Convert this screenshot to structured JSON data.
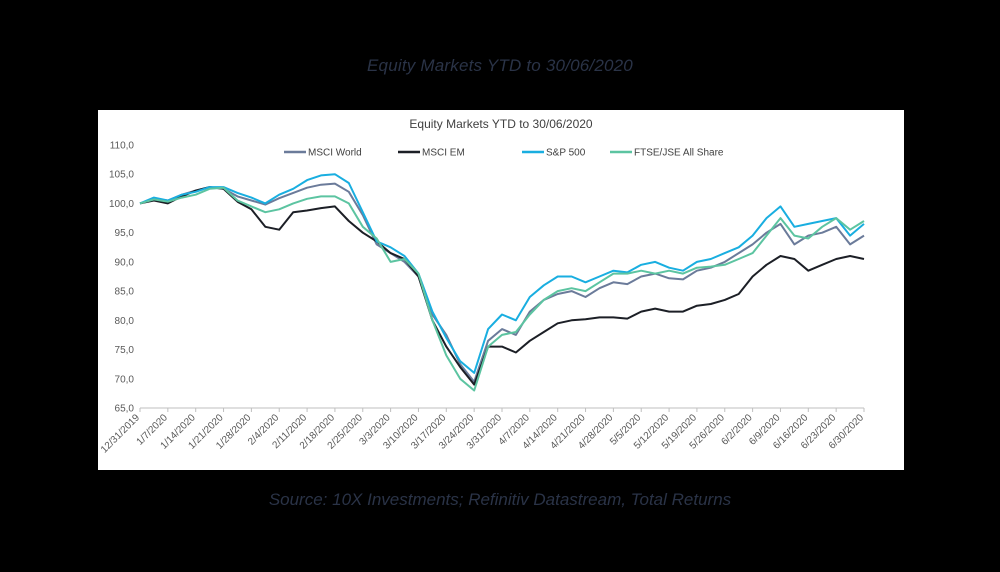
{
  "page": {
    "title": "Equity Markets YTD to 30/06/2020",
    "source": "Source: 10X Investments; Refinitiv Datastream, Total Returns"
  },
  "chart_data": {
    "type": "line",
    "title": "Equity Markets YTD to 30/06/2020",
    "xlabel": "",
    "ylabel": "",
    "ylim": [
      65,
      110
    ],
    "yticks": [
      "65,0",
      "70,0",
      "75,0",
      "80,0",
      "85,0",
      "90,0",
      "95,0",
      "100,0",
      "105,0",
      "110,0"
    ],
    "grid": false,
    "legend": "top",
    "x_tick_labels": [
      "12/31/2019",
      "1/7/2020",
      "1/14/2020",
      "1/21/2020",
      "1/28/2020",
      "2/4/2020",
      "2/11/2020",
      "2/18/2020",
      "2/25/2020",
      "3/3/2020",
      "3/10/2020",
      "3/17/2020",
      "3/24/2020",
      "3/31/2020",
      "4/7/2020",
      "4/14/2020",
      "4/21/2020",
      "4/28/2020",
      "5/5/2020",
      "5/12/2020",
      "5/19/2020",
      "5/26/2020",
      "6/2/2020",
      "6/9/2020",
      "6/16/2020",
      "6/23/2020",
      "6/30/2020"
    ],
    "x": [
      "12/31/2019",
      "1/3/2020",
      "1/7/2020",
      "1/10/2020",
      "1/14/2020",
      "1/17/2020",
      "1/21/2020",
      "1/24/2020",
      "1/28/2020",
      "1/31/2020",
      "2/4/2020",
      "2/7/2020",
      "2/11/2020",
      "2/14/2020",
      "2/18/2020",
      "2/21/2020",
      "2/25/2020",
      "2/28/2020",
      "3/3/2020",
      "3/6/2020",
      "3/10/2020",
      "3/13/2020",
      "3/17/2020",
      "3/20/2020",
      "3/24/2020",
      "3/27/2020",
      "3/31/2020",
      "4/3/2020",
      "4/7/2020",
      "4/10/2020",
      "4/14/2020",
      "4/17/2020",
      "4/21/2020",
      "4/24/2020",
      "4/28/2020",
      "5/1/2020",
      "5/5/2020",
      "5/8/2020",
      "5/12/2020",
      "5/15/2020",
      "5/19/2020",
      "5/22/2020",
      "5/26/2020",
      "5/29/2020",
      "6/2/2020",
      "6/5/2020",
      "6/9/2020",
      "6/12/2020",
      "6/16/2020",
      "6/19/2020",
      "6/23/2020",
      "6/26/2020",
      "6/30/2020"
    ],
    "series": [
      {
        "name": "MSCI World",
        "color": "#6b7b9a",
        "values": [
          100,
          100.8,
          100.5,
          101.5,
          102.2,
          102.8,
          102.5,
          101.2,
          100.5,
          99.8,
          100.9,
          101.8,
          102.7,
          103.2,
          103.4,
          102.0,
          98.0,
          93.0,
          91.5,
          90.0,
          87.5,
          81.0,
          77.5,
          72.5,
          69.5,
          76.5,
          78.5,
          77.5,
          81.5,
          83.5,
          84.5,
          85.0,
          84.0,
          85.5,
          86.5,
          86.2,
          87.5,
          88.0,
          87.2,
          87.0,
          88.5,
          89.0,
          90.0,
          91.5,
          93.0,
          95.0,
          96.5,
          93.0,
          94.5,
          95.0,
          96.0,
          93.0,
          94.5
        ]
      },
      {
        "name": "MSCI EM",
        "color": "#1c1f26",
        "values": [
          100,
          100.5,
          100.0,
          101.2,
          102.2,
          102.8,
          102.5,
          100.3,
          99.0,
          96.0,
          95.5,
          98.5,
          98.8,
          99.2,
          99.5,
          97.0,
          95.0,
          93.5,
          91.5,
          90.5,
          87.5,
          80.0,
          75.5,
          72.0,
          69.0,
          75.5,
          75.5,
          74.5,
          76.5,
          78.0,
          79.5,
          80.0,
          80.2,
          80.5,
          80.5,
          80.3,
          81.5,
          82.0,
          81.5,
          81.5,
          82.5,
          82.8,
          83.5,
          84.5,
          87.5,
          89.5,
          91.0,
          90.5,
          88.5,
          89.5,
          90.5,
          91.0,
          90.5
        ]
      },
      {
        "name": "S&P 500",
        "color": "#19aee0",
        "values": [
          100,
          101.0,
          100.5,
          101.5,
          102.0,
          102.8,
          102.8,
          101.8,
          101.0,
          100.0,
          101.5,
          102.5,
          104.0,
          104.8,
          105.0,
          103.5,
          98.5,
          93.5,
          92.5,
          91.0,
          88.0,
          81.5,
          77.0,
          73.0,
          71.0,
          78.5,
          81.0,
          80.0,
          84.0,
          86.0,
          87.5,
          87.5,
          86.5,
          87.5,
          88.5,
          88.2,
          89.5,
          90.0,
          89.0,
          88.5,
          90.0,
          90.5,
          91.5,
          92.5,
          94.5,
          97.5,
          99.5,
          96.0,
          96.5,
          97.0,
          97.5,
          94.5,
          96.5
        ]
      },
      {
        "name": "FTSE/JSE All Share",
        "color": "#5cc4a1",
        "values": [
          100,
          100.7,
          100.3,
          101.0,
          101.5,
          102.5,
          102.7,
          100.5,
          99.5,
          98.5,
          99.0,
          100.0,
          100.8,
          101.2,
          101.2,
          100.0,
          96.0,
          94.0,
          90.0,
          90.5,
          88.0,
          80.0,
          74.0,
          70.0,
          68.0,
          75.5,
          77.5,
          78.0,
          81.0,
          83.5,
          85.0,
          85.5,
          85.0,
          86.5,
          88.0,
          88.0,
          88.5,
          88.0,
          88.5,
          88.0,
          89.0,
          89.2,
          89.5,
          90.5,
          91.5,
          94.5,
          97.5,
          94.5,
          94.0,
          96.0,
          97.5,
          95.5,
          97.0
        ]
      }
    ]
  }
}
